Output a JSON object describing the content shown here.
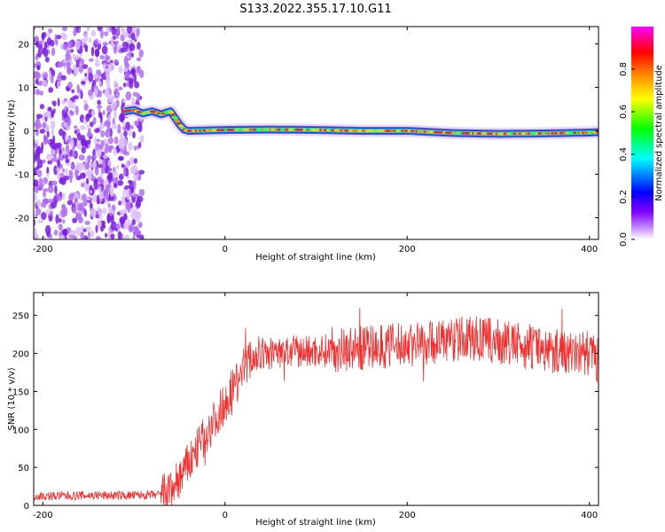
{
  "title": "S133.2022.355.17.10.G11",
  "chart_data": [
    {
      "type": "heatmap",
      "xlabel": "Height of straight line (km)",
      "ylabel": "Frequency (Hz)",
      "xlim": [
        -210,
        410
      ],
      "ylim": [
        -25,
        24
      ],
      "xticks": [
        -200,
        0,
        200,
        400
      ],
      "yticks": [
        -20,
        -10,
        0,
        10,
        20
      ],
      "colorbar": {
        "label": "Normalized spectral amplitude",
        "ticks": [
          0.0,
          0.2,
          0.4,
          0.6,
          0.8
        ],
        "range": [
          0,
          1
        ],
        "colormap": [
          "#ffffff",
          "#8000ff",
          "#0000ff",
          "#00ffff",
          "#00ff00",
          "#ffff00",
          "#ff8000",
          "#ff0000",
          "#ff00ff"
        ]
      },
      "frequency_track": {
        "x": [
          -110,
          -100,
          -90,
          -80,
          -70,
          -60,
          -55,
          -50,
          -45,
          -40,
          0,
          50,
          100,
          150,
          200,
          250,
          300,
          350,
          400,
          410
        ],
        "y": [
          4.5,
          4.8,
          4.0,
          4.5,
          3.8,
          4.5,
          3.0,
          1.5,
          0.3,
          0.0,
          0.2,
          0.3,
          0.2,
          0.0,
          0.0,
          -0.5,
          -0.7,
          -0.6,
          -0.4,
          -0.3
        ]
      },
      "noise_region": {
        "x": [
          -210,
          -97
        ]
      }
    },
    {
      "type": "line",
      "xlabel": "Height of straight line (km)",
      "ylabel": "SNR (10 * v/v)",
      "xlim": [
        -210,
        410
      ],
      "ylim": [
        0,
        280
      ],
      "xticks": [
        -200,
        0,
        200,
        400
      ],
      "yticks": [
        0,
        50,
        100,
        150,
        200,
        250
      ],
      "color": "#f03030",
      "trend": {
        "x": [
          -210,
          -150,
          -100,
          -70,
          -60,
          -50,
          -40,
          -30,
          -20,
          -10,
          0,
          10,
          20,
          30,
          50,
          100,
          150,
          200,
          250,
          270,
          300,
          350,
          400,
          410
        ],
        "y": [
          12,
          13,
          13,
          14,
          20,
          35,
          55,
          75,
          95,
          115,
          135,
          160,
          180,
          195,
          200,
          203,
          207,
          212,
          218,
          220,
          215,
          205,
          200,
          190
        ]
      }
    }
  ]
}
